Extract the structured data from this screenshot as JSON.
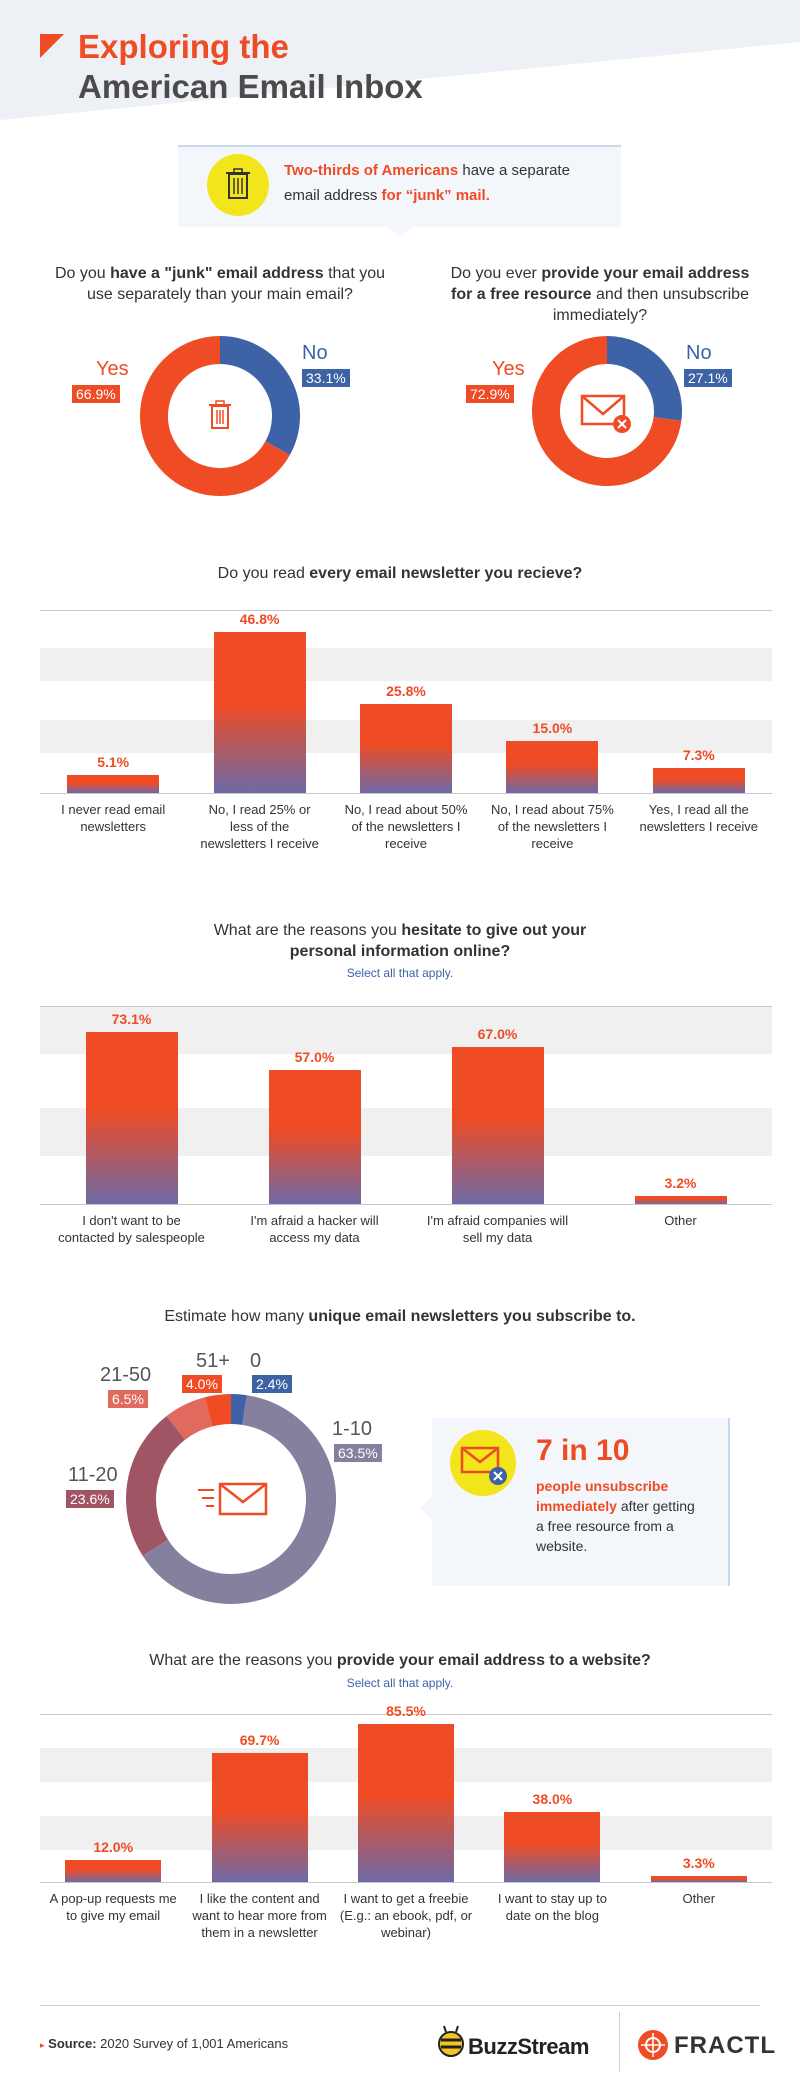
{
  "header": {
    "title_line1": "Exploring the",
    "title_line2": "American Email Inbox"
  },
  "callout": {
    "part1": "Two-thirds of Americans",
    "part2": " have a separate email address ",
    "part3": "for “junk” mail."
  },
  "q1": {
    "pre": "Do you ",
    "bold": "have a \"junk\" email address",
    "post": " that you use separately than your main email?"
  },
  "q2": {
    "pre": "Do you ever ",
    "bold": "provide your email address for a free resource",
    "post": " and then unsubscribe immediately?"
  },
  "q3": {
    "pre": "Do you read ",
    "bold": "every email newsletter you recieve?"
  },
  "q4": {
    "pre": "What are the reasons you ",
    "bold": "hesitate to give out your personal information online?",
    "sub": "Select all that apply."
  },
  "q5": {
    "pre": "Estimate how many ",
    "bold": "unique email newsletters you subscribe to."
  },
  "q6": {
    "pre": "What are the reasons you ",
    "bold": "provide your email address to a website?",
    "sub": "Select all that apply."
  },
  "stat_box": {
    "big": "7 in 10",
    "orange": "people unsubscribe immediately",
    "rest": " after getting a free resource from a website."
  },
  "colors": {
    "orange": "#ef4b24",
    "blue": "#3d63a6",
    "purple": "#86809f",
    "maroon": "#a05565",
    "salmon": "#e06a5e"
  },
  "chart_data": [
    {
      "type": "pie",
      "categories": [
        "Yes",
        "No"
      ],
      "values": [
        66.9,
        33.1
      ],
      "labels": [
        "66.9%",
        "33.1%"
      ]
    },
    {
      "type": "pie",
      "categories": [
        "Yes",
        "No"
      ],
      "values": [
        72.9,
        27.1
      ],
      "labels": [
        "72.9%",
        "27.1%"
      ]
    },
    {
      "type": "bar",
      "categories": [
        "I never read email newsletters",
        "No, I read 25% or less of the newsletters I receive",
        "No, I read about 50% of the newsletters I receive",
        "No, I read about 75% of the newsletters I receive",
        "Yes, I read all the newsletters I receive"
      ],
      "values": [
        5.1,
        46.8,
        25.8,
        15.0,
        7.3
      ],
      "labels": [
        "5.1%",
        "46.8%",
        "25.8%",
        "15.0%",
        "7.3%"
      ],
      "ylim": [
        0,
        50
      ]
    },
    {
      "type": "bar",
      "categories": [
        "I don't want to be contacted by salespeople",
        "I'm afraid a hacker will access my data",
        "I'm afraid companies will sell my data",
        "Other"
      ],
      "values": [
        73.1,
        57.0,
        67.0,
        3.2
      ],
      "labels": [
        "73.1%",
        "57.0%",
        "67.0%",
        "3.2%"
      ],
      "ylim": [
        0,
        80
      ]
    },
    {
      "type": "pie",
      "categories": [
        "0",
        "1-10",
        "11-20",
        "21-50",
        "51+"
      ],
      "values": [
        2.4,
        63.5,
        23.6,
        6.5,
        4.0
      ],
      "labels": [
        "2.4%",
        "63.5%",
        "23.6%",
        "6.5%",
        "4.0%"
      ]
    },
    {
      "type": "bar",
      "categories": [
        "A pop-up requests me to give my email",
        "I like the content and want to hear more from them in a newsletter",
        "I want to get a freebie (E.g.: an ebook, pdf, or webinar)",
        "I want to stay up to date on the blog",
        "Other"
      ],
      "values": [
        12.0,
        69.7,
        85.5,
        38.0,
        3.3
      ],
      "labels": [
        "12.0%",
        "69.7%",
        "85.5%",
        "38.0%",
        "3.3%"
      ],
      "ylim": [
        0,
        90
      ]
    }
  ],
  "footer": {
    "source_label": "Source:",
    "source_text": " 2020 Survey of 1,001 Americans",
    "logo1": "BuzzStream",
    "logo2": "FRACTL"
  }
}
